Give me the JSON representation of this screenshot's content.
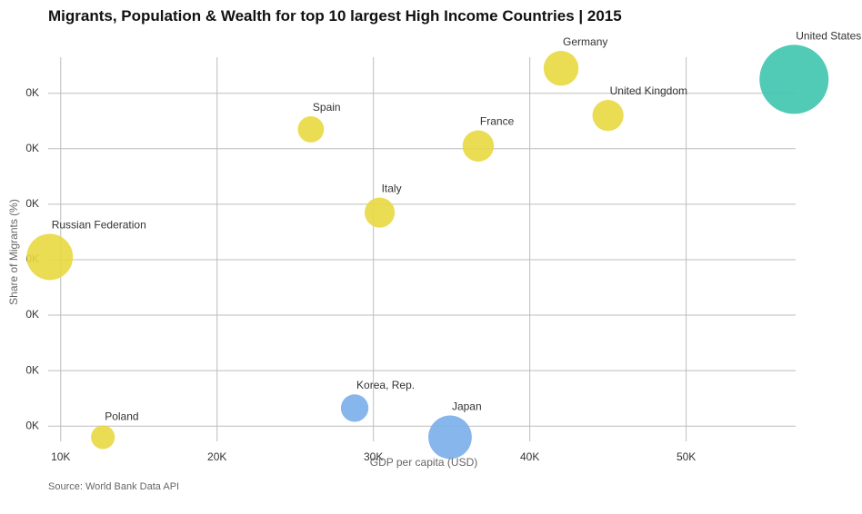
{
  "chart_data": {
    "type": "scatter",
    "title": "Migrants, Population & Wealth for top 10 largest High Income Countries | 2015",
    "xlabel": "GDP per capita (USD)",
    "ylabel": "Share of Migrants (%)",
    "x_ticks": [
      {
        "value": 10000,
        "label": "10K"
      },
      {
        "value": 20000,
        "label": "20K"
      },
      {
        "value": 30000,
        "label": "30K"
      },
      {
        "value": 40000,
        "label": "40K"
      },
      {
        "value": 50000,
        "label": "50K"
      }
    ],
    "y_ticks": [
      {
        "value": 0,
        "label": "0K"
      },
      {
        "value": 2,
        "label": "0K"
      },
      {
        "value": 4,
        "label": "0K"
      },
      {
        "value": 6,
        "label": "0K"
      },
      {
        "value": 8,
        "label": "0K"
      },
      {
        "value": 10,
        "label": "0K"
      },
      {
        "value": 12,
        "label": "0K"
      }
    ],
    "xlim": [
      9200,
      57000
    ],
    "ylim": [
      -0.55,
      13.3
    ],
    "grid": true,
    "legend": "none",
    "size_encoding": "population",
    "color_encoding": "region",
    "points": [
      {
        "name": "United States",
        "x": 56900,
        "y": 12.5,
        "population": 321,
        "color": "#3ec5ae"
      },
      {
        "name": "Germany",
        "x": 42000,
        "y": 12.9,
        "population": 82,
        "color": "#e8d840"
      },
      {
        "name": "United Kingdom",
        "x": 45000,
        "y": 11.2,
        "population": 65,
        "color": "#e8d840"
      },
      {
        "name": "Spain",
        "x": 26000,
        "y": 10.7,
        "population": 46,
        "color": "#e8d840"
      },
      {
        "name": "France",
        "x": 36700,
        "y": 10.1,
        "population": 66,
        "color": "#e8d840"
      },
      {
        "name": "Italy",
        "x": 30400,
        "y": 7.7,
        "population": 61,
        "color": "#e8d840"
      },
      {
        "name": "Russian Federation",
        "x": 9300,
        "y": 6.1,
        "population": 144,
        "color": "#e8d840"
      },
      {
        "name": "Korea, Rep.",
        "x": 28800,
        "y": 0.65,
        "population": 51,
        "color": "#7aaeea"
      },
      {
        "name": "Japan",
        "x": 34900,
        "y": -0.4,
        "population": 127,
        "color": "#7aaeea"
      },
      {
        "name": "Poland",
        "x": 12700,
        "y": -0.4,
        "population": 38,
        "color": "#e8d840"
      }
    ]
  },
  "source_text": "Source: World Bank Data API"
}
